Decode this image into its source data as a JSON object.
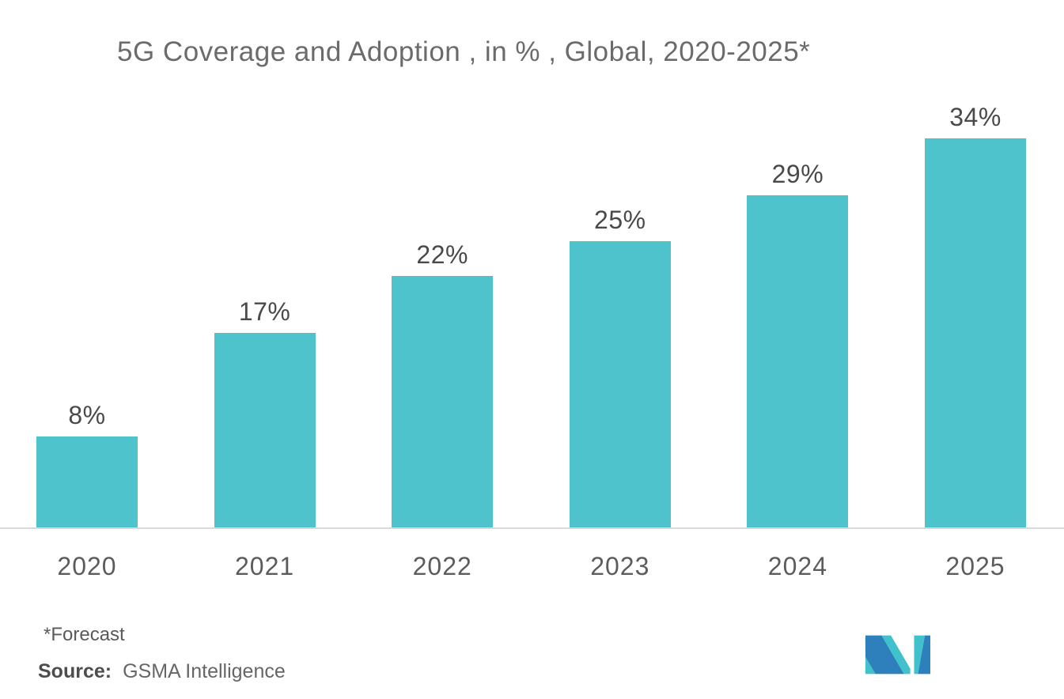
{
  "chart_data": {
    "type": "bar",
    "title": "5G Coverage and Adoption , in % , Global, 2020-2025*",
    "categories": [
      "2020",
      "2021",
      "2022",
      "2023",
      "2024",
      "2025"
    ],
    "values": [
      8,
      17,
      22,
      25,
      29,
      34
    ],
    "unit": "%",
    "data_labels": [
      "8%",
      "17%",
      "22%",
      "25%",
      "29%",
      "34%"
    ],
    "xlabel": "",
    "ylabel": "",
    "ylim": [
      0,
      38
    ],
    "grid": false,
    "legend": "none",
    "bar_color": "#4ec3cb",
    "axis_line_color": "#d9d9d9",
    "title_color": "#6b6b6b",
    "label_color": "#4a4a4a",
    "tick_color": "#5c5c5c"
  },
  "footer": {
    "note": "*Forecast",
    "source_label": "Source:",
    "source_value": "GSMA Intelligence"
  },
  "logo": {
    "name": "mordor-intelligence-logo",
    "blue": "#2e80bc",
    "teal": "#40c1cb"
  }
}
